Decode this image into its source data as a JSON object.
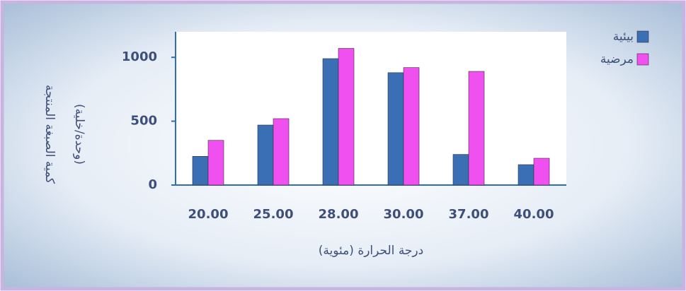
{
  "chart_data": {
    "type": "bar",
    "ylabel": [
      "كمية الصبغة المنتجة",
      "(وحدة/خلية)"
    ],
    "xlabel": "درجة الحرارة (مئوية)",
    "categories": [
      "20.00",
      "25.00",
      "28.00",
      "30.00",
      "37.00",
      "40.00"
    ],
    "series": [
      {
        "name": "بيئية",
        "color": "#3a6fb5",
        "values": [
          225,
          470,
          990,
          880,
          240,
          160
        ]
      },
      {
        "name": "مرضية",
        "color": "#f050f0",
        "values": [
          350,
          520,
          1070,
          920,
          890,
          210
        ]
      }
    ],
    "ylim": [
      0,
      1200
    ],
    "yticks": [
      0,
      500,
      1000
    ],
    "grid": false,
    "legend": "top-right"
  }
}
